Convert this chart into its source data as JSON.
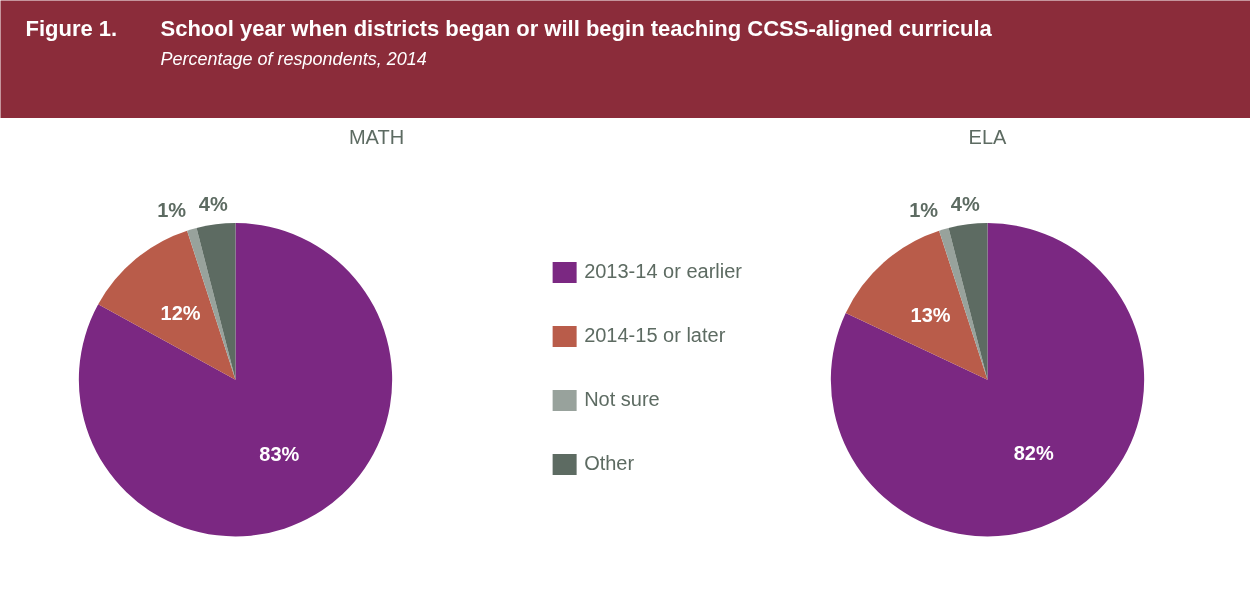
{
  "chart_data": [
    {
      "type": "other",
      "title": "School year when districts began or will begin teaching CCSS-aligned curricula",
      "subtitle": "Percentage of respondents, 2014",
      "annotations": [
        "Figure 1."
      ]
    },
    {
      "type": "pie",
      "title": "MATH",
      "categories": [
        "2013-14 or earlier",
        "2014-15 or later",
        "Not sure",
        "Other"
      ],
      "values": [
        83,
        12,
        1,
        4
      ],
      "data_labels": true,
      "value_labels": [
        "83%",
        "12%",
        "1%",
        "4%"
      ],
      "colors": [
        "#7b2882",
        "#b95c4a",
        "#98a29c",
        "#5d6b62"
      ],
      "legend": "right"
    },
    {
      "type": "pie",
      "title": "ELA",
      "categories": [
        null,
        null,
        null,
        null
      ],
      "values": [
        82,
        13,
        1,
        4
      ],
      "data_labels": true,
      "value_labels": [
        "82%",
        "13%",
        "1%",
        "4%"
      ],
      "colors": [
        "#7b2882",
        "#b95c4a",
        "#98a29c",
        "#5d6b62"
      ],
      "legend": false
    }
  ]
}
